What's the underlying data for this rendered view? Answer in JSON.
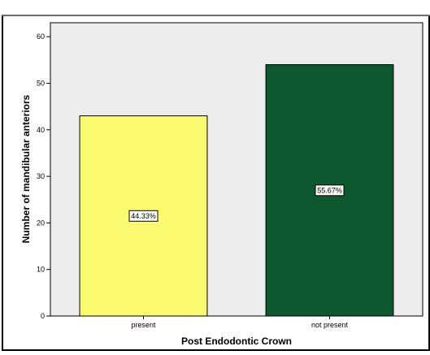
{
  "chart_data": {
    "type": "bar",
    "title": "",
    "xlabel": "Post Endodontic Crown",
    "ylabel": "Number of mandibular anteriors",
    "categories": [
      "present",
      "not present"
    ],
    "values": [
      43,
      54
    ],
    "data_labels": [
      "44.33%",
      "55.67%"
    ],
    "bar_colors": [
      "#fbfb71",
      "#0e582f"
    ],
    "yticks": [
      "0",
      "10",
      "20",
      "30",
      "40",
      "50",
      "60"
    ],
    "ylim": [
      0,
      63
    ],
    "grid": false,
    "legend": "none"
  },
  "colors": {
    "plot_background": "#ededed",
    "bar_outline": "#000000",
    "frame": "#000000"
  }
}
